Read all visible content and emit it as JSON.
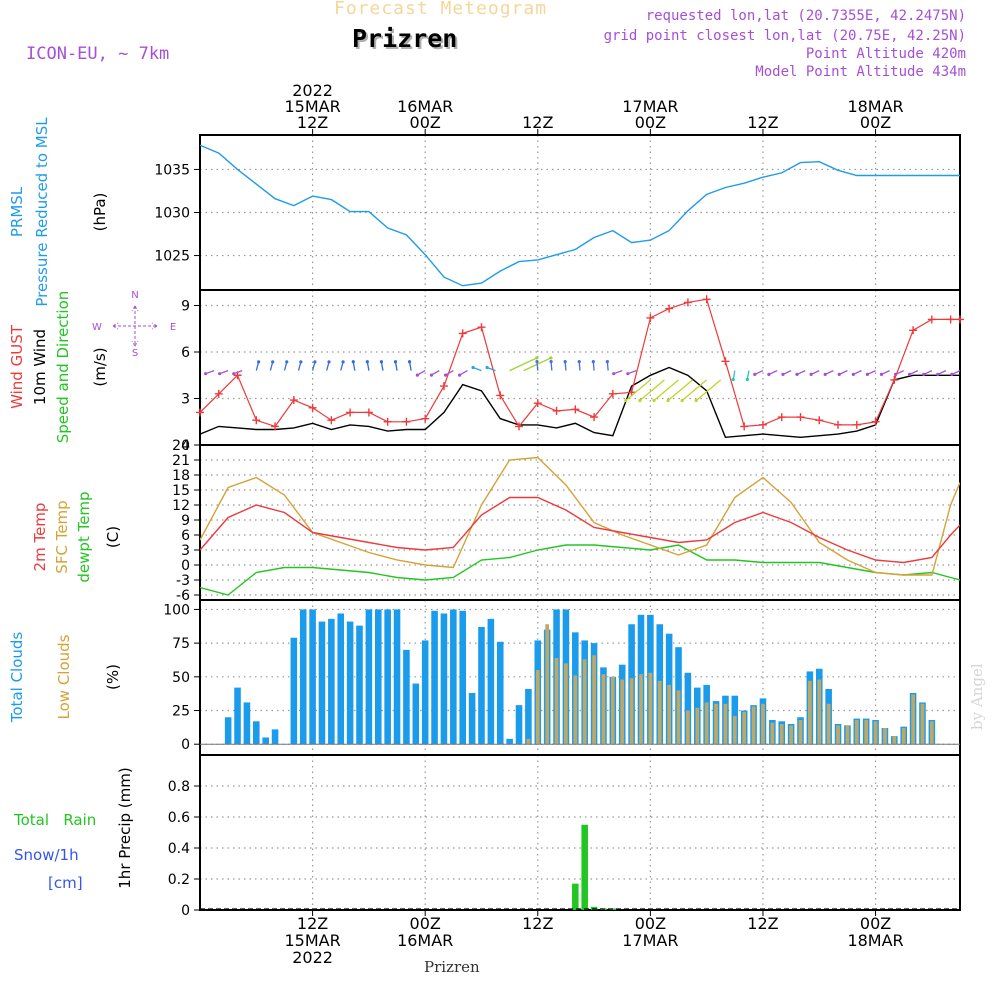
{
  "header": {
    "subtitle": "Forecast Meteogram",
    "station": "Prizren",
    "model": "ICON-EU, ~ 7km",
    "requested": "requested lon,lat (20.7355E, 42.2475N)",
    "grid_point": "grid point closest lon,lat (20.75E, 42.25N)",
    "point_alt": "Point Altitude 420m",
    "model_alt": "Model Point Altitude 434m",
    "footer": "Prizren",
    "credit": "by Angel"
  },
  "time_axis": {
    "top_labels": [
      {
        "h": 12,
        "lines": [
          "2022",
          "15MAR",
          "12Z"
        ]
      },
      {
        "h": 24,
        "lines": [
          "16MAR",
          "00Z"
        ]
      },
      {
        "h": 36,
        "lines": [
          "12Z"
        ]
      },
      {
        "h": 48,
        "lines": [
          "17MAR",
          "00Z"
        ]
      },
      {
        "h": 60,
        "lines": [
          "12Z"
        ]
      },
      {
        "h": 72,
        "lines": [
          "18MAR",
          "00Z"
        ]
      }
    ],
    "bottom_labels": [
      {
        "h": 12,
        "lines": [
          "12Z",
          "15MAR",
          "2022"
        ]
      },
      {
        "h": 24,
        "lines": [
          "00Z",
          "16MAR"
        ]
      },
      {
        "h": 36,
        "lines": [
          "12Z"
        ]
      },
      {
        "h": 48,
        "lines": [
          "00Z",
          "17MAR"
        ]
      },
      {
        "h": 60,
        "lines": [
          "12Z"
        ]
      },
      {
        "h": 72,
        "lines": [
          "00Z",
          "18MAR"
        ]
      }
    ]
  },
  "colors": {
    "prmsl": "#1e9bea",
    "gust": "#ee3a3a",
    "wind": "#000000",
    "temp2m": "#ee3a3a",
    "sfc": "#d6a236",
    "dew": "#22c622",
    "total_clouds": "#1a9bec",
    "low_clouds": "#bda867",
    "rain": "#22c622",
    "snow": "#3355ee",
    "purple": "#a64fd6",
    "grid": "#999999"
  },
  "panel_labels": {
    "p1": {
      "l1": "PRMSL",
      "l2": "Pressure Reduced to MSL",
      "unit": "(hPa)"
    },
    "p2": {
      "l1": "Wind GUST",
      "l2": "10m Wind",
      "l3": "Speed and Direction",
      "unit": "(m/s)",
      "compass_n": "N",
      "compass_s": "S",
      "compass_w": "W",
      "compass_e": "E"
    },
    "p3": {
      "l1": "2m Temp",
      "l2": "SFC Temp",
      "l3": "dewpt Temp",
      "unit": "(C)"
    },
    "p4": {
      "l1": "Total Clouds",
      "l2": "Low Clouds",
      "unit": "(%)"
    },
    "p5": {
      "l1": "Total   Rain",
      "l2": "Snow/1h",
      "l3": "[cm]",
      "ylabel": "1hr Precip (mm)"
    }
  },
  "chart_data": [
    {
      "type": "line",
      "title": "PRMSL Pressure Reduced to MSL",
      "ylabel": "(hPa)",
      "ylim": [
        1021,
        1039
      ],
      "yticks": [
        1025,
        1030,
        1035
      ],
      "x_unit": "hours from 15MAR 00Z",
      "xlim": [
        0,
        81
      ],
      "grid": true,
      "series": [
        {
          "name": "PRMSL",
          "x": [
            0,
            2,
            4,
            6,
            8,
            10,
            12,
            14,
            16,
            18,
            20,
            22,
            24,
            26,
            28,
            30,
            32,
            34,
            36,
            38,
            40,
            42,
            44,
            46,
            48,
            50,
            52,
            54,
            56,
            58,
            60,
            62,
            64,
            66,
            68,
            70,
            72,
            74,
            76,
            78,
            80,
            81
          ],
          "y": [
            1037.8,
            1036.9,
            1035,
            1033.3,
            1031.6,
            1030.8,
            1031.9,
            1031.5,
            1030.1,
            1030.1,
            1028.2,
            1027.4,
            1025.1,
            1022.5,
            1021.5,
            1021.8,
            1023.2,
            1024.3,
            1024.5,
            1025.1,
            1025.7,
            1027.1,
            1027.9,
            1026.5,
            1026.8,
            1027.9,
            1030.2,
            1032.1,
            1032.9,
            1033.4,
            1034.1,
            1034.6,
            1035.8,
            1035.9,
            1034.9,
            1034.3,
            1034.3,
            1034.3,
            1034.3,
            1034.3,
            1034.3,
            1034.3
          ]
        }
      ]
    },
    {
      "type": "line",
      "title": "Wind GUST / 10m Wind Speed and Direction",
      "ylabel": "(m/s)",
      "ylim": [
        0,
        10
      ],
      "yticks": [
        0,
        3,
        6,
        9
      ],
      "x_unit": "hours from 15MAR 00Z",
      "xlim": [
        0,
        81
      ],
      "grid": true,
      "series": [
        {
          "name": "Wind GUST",
          "x": [
            0,
            2,
            4,
            6,
            8,
            10,
            12,
            14,
            16,
            18,
            20,
            22,
            24,
            26,
            28,
            30,
            32,
            34,
            36,
            38,
            40,
            42,
            44,
            46,
            48,
            50,
            52,
            54,
            56,
            58,
            60,
            62,
            64,
            66,
            68,
            70,
            72,
            74,
            76,
            78,
            80,
            81
          ],
          "y": [
            2.1,
            3.3,
            4.5,
            1.6,
            1.2,
            2.9,
            2.4,
            1.6,
            2.1,
            2.1,
            1.5,
            1.5,
            1.7,
            3.8,
            7.2,
            7.6,
            3.2,
            1.2,
            2.7,
            2.2,
            2.3,
            1.8,
            3.3,
            3.4,
            8.2,
            8.8,
            9.2,
            9.4,
            5.4,
            1.2,
            1.3,
            1.8,
            1.8,
            1.6,
            1.3,
            1.3,
            1.5,
            4.2,
            7.4,
            8.1,
            8.1,
            8.1
          ]
        },
        {
          "name": "10m Wind",
          "x": [
            0,
            2,
            4,
            6,
            8,
            10,
            12,
            14,
            16,
            18,
            20,
            22,
            24,
            26,
            28,
            30,
            32,
            34,
            36,
            38,
            40,
            42,
            44,
            46,
            48,
            50,
            52,
            54,
            56,
            58,
            60,
            62,
            64,
            66,
            68,
            70,
            72,
            74,
            76,
            78,
            80,
            81
          ],
          "y": [
            0.7,
            1.2,
            1.1,
            1.0,
            1.0,
            1.1,
            1.4,
            1.0,
            1.3,
            1.2,
            0.9,
            1.0,
            1.0,
            2.1,
            3.9,
            3.5,
            1.7,
            1.3,
            1.3,
            1.1,
            1.4,
            0.8,
            0.6,
            3.8,
            4.5,
            5.0,
            4.5,
            3.5,
            0.5,
            0.6,
            0.7,
            0.6,
            0.5,
            0.6,
            0.7,
            0.9,
            1.3,
            4.2,
            4.5,
            4.5,
            4.5,
            4.5
          ]
        }
      ]
    },
    {
      "type": "line",
      "title": "2m Temp / SFC Temp / dewpt Temp",
      "ylabel": "(C)",
      "ylim": [
        -7,
        24
      ],
      "yticks": [
        -6,
        -3,
        0,
        3,
        6,
        9,
        12,
        15,
        18,
        21,
        24
      ],
      "x_unit": "hours from 15MAR 00Z",
      "xlim": [
        0,
        81
      ],
      "grid": true,
      "series": [
        {
          "name": "2m Temp",
          "x": [
            0,
            3,
            6,
            9,
            12,
            15,
            18,
            21,
            24,
            27,
            30,
            33,
            36,
            39,
            42,
            45,
            48,
            51,
            54,
            57,
            60,
            63,
            66,
            69,
            72,
            75,
            78,
            80,
            81
          ],
          "y": [
            3,
            9.5,
            12,
            10.5,
            6.5,
            5.5,
            4.5,
            3.5,
            3,
            3.5,
            10,
            13.5,
            13.5,
            11,
            7.5,
            6.5,
            5.5,
            4.5,
            5,
            8.5,
            10.5,
            8.5,
            5.5,
            3,
            1,
            0.5,
            1.5,
            6,
            8
          ]
        },
        {
          "name": "SFC Temp",
          "x": [
            0,
            3,
            6,
            9,
            12,
            15,
            18,
            21,
            24,
            27,
            30,
            33,
            36,
            39,
            42,
            45,
            48,
            51,
            54,
            57,
            60,
            63,
            66,
            69,
            72,
            75,
            78,
            80,
            81
          ],
          "y": [
            5,
            15.5,
            17.5,
            14,
            6.5,
            4.5,
            2.5,
            1,
            0,
            -0.5,
            12,
            21,
            21.5,
            16,
            8.5,
            6,
            4,
            2,
            4,
            13.5,
            17.5,
            12.5,
            4.5,
            1,
            -1.5,
            -2,
            -2,
            12,
            16.5
          ]
        },
        {
          "name": "dewpt Temp",
          "x": [
            0,
            3,
            6,
            9,
            12,
            15,
            18,
            21,
            24,
            27,
            30,
            33,
            36,
            39,
            42,
            45,
            48,
            51,
            54,
            57,
            60,
            63,
            66,
            69,
            72,
            75,
            78,
            80,
            81
          ],
          "y": [
            -4.5,
            -6,
            -1.5,
            -0.5,
            -0.5,
            -1,
            -1.5,
            -2.5,
            -3,
            -2.5,
            1,
            1.5,
            3,
            4,
            4,
            3.5,
            3,
            4,
            1,
            1,
            0.5,
            0.5,
            0.5,
            -0.5,
            -1.5,
            -2,
            -1.5,
            -2.5,
            -3
          ]
        }
      ]
    },
    {
      "type": "bar",
      "title": "Total Clouds / Low Clouds",
      "ylabel": "(%)",
      "ylim": [
        -8,
        107
      ],
      "yticks": [
        0,
        25,
        50,
        75,
        100
      ],
      "x_unit": "hours from 15MAR 00Z",
      "xlim": [
        0,
        81
      ],
      "grid": true,
      "x": [
        0,
        1,
        2,
        3,
        4,
        5,
        6,
        7,
        8,
        9,
        10,
        11,
        12,
        13,
        14,
        15,
        16,
        17,
        18,
        19,
        20,
        21,
        22,
        23,
        24,
        25,
        26,
        27,
        28,
        29,
        30,
        31,
        32,
        33,
        34,
        35,
        36,
        37,
        38,
        39,
        40,
        41,
        42,
        43,
        44,
        45,
        46,
        47,
        48,
        49,
        50,
        51,
        52,
        53,
        54,
        55,
        56,
        57,
        58,
        59,
        60,
        61,
        62,
        63,
        64,
        65,
        66,
        67,
        68,
        69,
        70,
        71,
        72,
        73,
        74,
        75,
        76,
        77,
        78,
        79,
        80,
        81
      ],
      "series": [
        {
          "name": "Total Clouds",
          "values": [
            0,
            0,
            0,
            20,
            42,
            31,
            17,
            5,
            11,
            0,
            79,
            100,
            100,
            91,
            93,
            97,
            91,
            88,
            100,
            100,
            100,
            100,
            70,
            45,
            77,
            99,
            97,
            100,
            99,
            38,
            87,
            93,
            76,
            4,
            29,
            41,
            77,
            85,
            100,
            100,
            83,
            77,
            75,
            57,
            50,
            59,
            89,
            96,
            96,
            89,
            82,
            72,
            53,
            42,
            44,
            32,
            36,
            36,
            25,
            29,
            34,
            18,
            17,
            15,
            20,
            54,
            56,
            41,
            15,
            14,
            19,
            19,
            18,
            12,
            6,
            13,
            38,
            31,
            18,
            0,
            0,
            0
          ]
        },
        {
          "name": "Low Clouds",
          "values": [
            0,
            0,
            0,
            0,
            0,
            0,
            0,
            0,
            0,
            0,
            0,
            0,
            0,
            0,
            0,
            0,
            0,
            0,
            0,
            0,
            0,
            0,
            0,
            0,
            0,
            0,
            0,
            0,
            0,
            0,
            0,
            0,
            0,
            0,
            0,
            4,
            55,
            89,
            64,
            60,
            51,
            63,
            66,
            52,
            50,
            48,
            49,
            52,
            53,
            47,
            44,
            40,
            25,
            27,
            31,
            30,
            30,
            21,
            24,
            28,
            30,
            16,
            15,
            14,
            18,
            47,
            48,
            30,
            14,
            14,
            18,
            18,
            17,
            12,
            6,
            12,
            37,
            30,
            17,
            0,
            0,
            0
          ]
        }
      ]
    },
    {
      "type": "bar",
      "title": "Total Rain / Snow/1h",
      "ylabel": "1hr Precip (mm)",
      "ylim": [
        0,
        1.0
      ],
      "yticks": [
        0,
        0.2,
        0.4,
        0.6,
        0.8
      ],
      "x_unit": "hours from 15MAR 00Z",
      "xlim": [
        0,
        81
      ],
      "grid": true,
      "x": [
        40,
        41,
        42,
        43,
        44
      ],
      "series": [
        {
          "name": "Total Rain",
          "values": [
            0.17,
            0.55,
            0.02,
            0.01,
            0.01
          ]
        },
        {
          "name": "Snow/1h",
          "values": [
            0,
            0,
            0,
            0,
            0
          ]
        }
      ]
    }
  ]
}
